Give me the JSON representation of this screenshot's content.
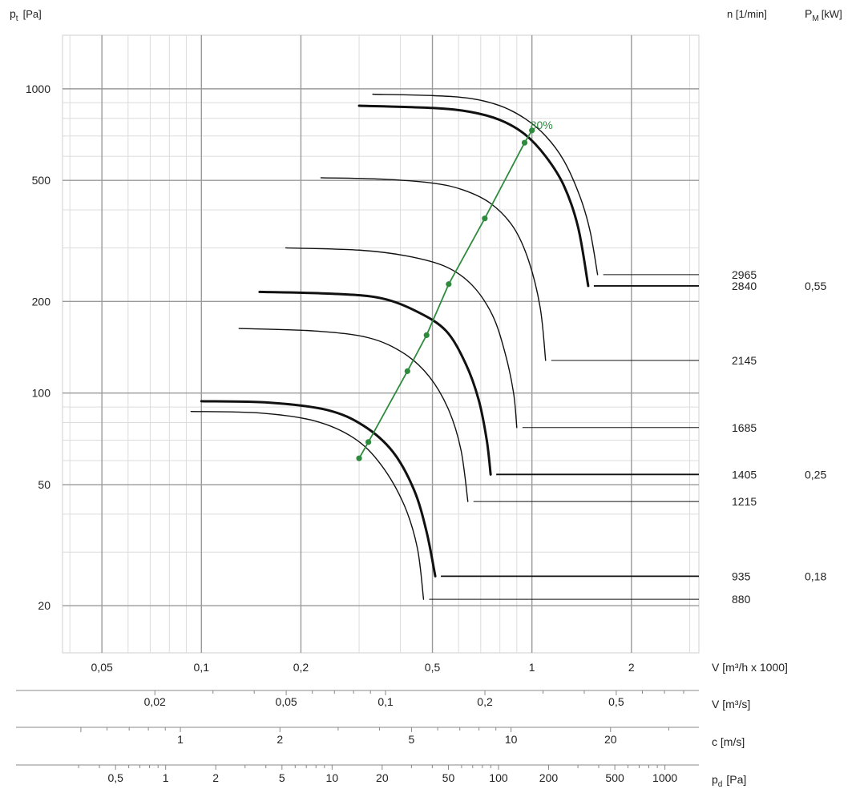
{
  "chart_data": {
    "type": "line",
    "title": "",
    "scale": "log-log",
    "grid": true,
    "ylabel": {
      "main": "p",
      "sub": "t",
      "unit": "[Pa]"
    },
    "xlabel": "V [m³/h x 1000]",
    "xlim": [
      0.038,
      3.2
    ],
    "ylim": [
      14,
      1500
    ],
    "x_ticks": [
      {
        "v": 0.05,
        "label": "0,05"
      },
      {
        "v": 0.1,
        "label": "0,1"
      },
      {
        "v": 0.2,
        "label": "0,2"
      },
      {
        "v": 0.5,
        "label": "0,5"
      },
      {
        "v": 1,
        "label": "1"
      },
      {
        "v": 2,
        "label": "2"
      }
    ],
    "y_ticks": [
      {
        "v": 20,
        "label": "20"
      },
      {
        "v": 50,
        "label": "50"
      },
      {
        "v": 100,
        "label": "100"
      },
      {
        "v": 200,
        "label": "200"
      },
      {
        "v": 500,
        "label": "500"
      },
      {
        "v": 1000,
        "label": "1000"
      }
    ],
    "right_headers": {
      "speed": "n [1/min]",
      "power_main": "P",
      "power_sub": "M",
      "power_unit": "[kW]"
    },
    "series": [
      {
        "name": "2965",
        "power": "",
        "bold": false,
        "points": [
          [
            0.33,
            960
          ],
          [
            0.5,
            950
          ],
          [
            0.65,
            930
          ],
          [
            0.8,
            880
          ],
          [
            0.95,
            800
          ],
          [
            1.1,
            700
          ],
          [
            1.25,
            580
          ],
          [
            1.4,
            440
          ],
          [
            1.5,
            340
          ],
          [
            1.58,
            245
          ]
        ]
      },
      {
        "name": "2840",
        "power": "0,55",
        "bold": true,
        "points": [
          [
            0.3,
            880
          ],
          [
            0.5,
            865
          ],
          [
            0.65,
            840
          ],
          [
            0.8,
            790
          ],
          [
            0.95,
            710
          ],
          [
            1.1,
            600
          ],
          [
            1.25,
            480
          ],
          [
            1.38,
            350
          ],
          [
            1.48,
            225
          ]
        ]
      },
      {
        "name": "2145",
        "power": "",
        "bold": false,
        "points": [
          [
            0.23,
            510
          ],
          [
            0.35,
            505
          ],
          [
            0.5,
            490
          ],
          [
            0.62,
            465
          ],
          [
            0.75,
            420
          ],
          [
            0.88,
            350
          ],
          [
            0.98,
            270
          ],
          [
            1.06,
            190
          ],
          [
            1.1,
            128
          ]
        ]
      },
      {
        "name": "1685",
        "power": "",
        "bold": false,
        "points": [
          [
            0.18,
            300
          ],
          [
            0.3,
            295
          ],
          [
            0.42,
            282
          ],
          [
            0.55,
            260
          ],
          [
            0.66,
            226
          ],
          [
            0.76,
            180
          ],
          [
            0.83,
            135
          ],
          [
            0.88,
            100
          ],
          [
            0.9,
            77
          ]
        ]
      },
      {
        "name": "1405",
        "power": "0,25",
        "bold": true,
        "points": [
          [
            0.15,
            215
          ],
          [
            0.25,
            212
          ],
          [
            0.35,
            205
          ],
          [
            0.45,
            185
          ],
          [
            0.55,
            160
          ],
          [
            0.63,
            125
          ],
          [
            0.69,
            95
          ],
          [
            0.73,
            70
          ],
          [
            0.75,
            54
          ]
        ]
      },
      {
        "name": "1215",
        "power": "",
        "bold": false,
        "points": [
          [
            0.13,
            163
          ],
          [
            0.22,
            160
          ],
          [
            0.32,
            152
          ],
          [
            0.41,
            135
          ],
          [
            0.49,
            113
          ],
          [
            0.56,
            88
          ],
          [
            0.61,
            65
          ],
          [
            0.64,
            44
          ]
        ]
      },
      {
        "name": "935",
        "power": "0,18",
        "bold": true,
        "points": [
          [
            0.1,
            94
          ],
          [
            0.16,
            93
          ],
          [
            0.24,
            88
          ],
          [
            0.31,
            78
          ],
          [
            0.38,
            64
          ],
          [
            0.44,
            48
          ],
          [
            0.48,
            35
          ],
          [
            0.51,
            25
          ]
        ]
      },
      {
        "name": "880",
        "power": "",
        "bold": false,
        "points": [
          [
            0.093,
            87
          ],
          [
            0.15,
            86
          ],
          [
            0.22,
            81
          ],
          [
            0.29,
            71
          ],
          [
            0.35,
            58
          ],
          [
            0.41,
            43
          ],
          [
            0.45,
            31
          ],
          [
            0.47,
            21
          ]
        ]
      }
    ],
    "efficiency_line": {
      "label": "80%",
      "color": "#2e8b3e",
      "points": [
        [
          0.3,
          61
        ],
        [
          0.32,
          69
        ],
        [
          0.42,
          118
        ],
        [
          0.48,
          155
        ],
        [
          0.56,
          228
        ],
        [
          0.72,
          375
        ],
        [
          0.95,
          665
        ],
        [
          1.0,
          730
        ]
      ]
    },
    "bottom_scales": [
      {
        "label": "V [m³/s]",
        "ticks": [
          {
            "v": 0.02,
            "label": "0,02"
          },
          {
            "v": 0.05,
            "label": "0,05"
          },
          {
            "v": 0.1,
            "label": "0,1"
          },
          {
            "v": 0.2,
            "label": "0,2"
          },
          {
            "v": 0.5,
            "label": "0,5"
          }
        ]
      },
      {
        "label": "c [m/s]",
        "ticks": [
          {
            "v": 1,
            "label": "1"
          },
          {
            "v": 2,
            "label": "2"
          },
          {
            "v": 5,
            "label": "5"
          },
          {
            "v": 10,
            "label": "10"
          },
          {
            "v": 20,
            "label": "20"
          }
        ]
      },
      {
        "label_main": "p",
        "label_sub": "d",
        "label_unit": "[Pa]",
        "ticks": [
          {
            "v": 0.5,
            "label": "0,5"
          },
          {
            "v": 1,
            "label": "1"
          },
          {
            "v": 2,
            "label": "2"
          },
          {
            "v": 5,
            "label": "5"
          },
          {
            "v": 10,
            "label": "10"
          },
          {
            "v": 20,
            "label": "20"
          },
          {
            "v": 50,
            "label": "50"
          },
          {
            "v": 100,
            "label": "100"
          },
          {
            "v": 200,
            "label": "200"
          },
          {
            "v": 500,
            "label": "500"
          },
          {
            "v": 1000,
            "label": "1000"
          }
        ]
      }
    ]
  }
}
